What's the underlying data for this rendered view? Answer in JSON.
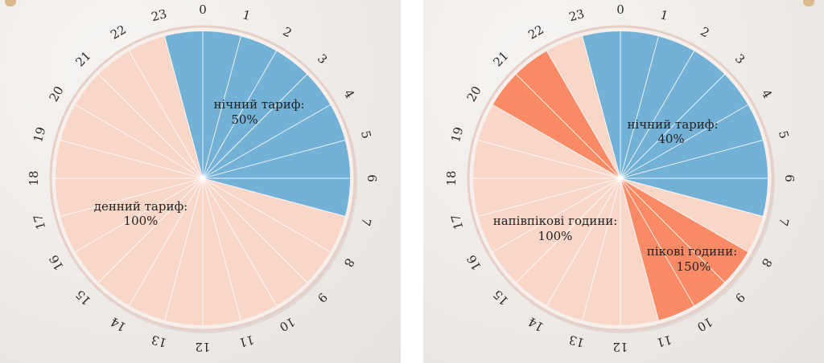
{
  "chart_data": [
    {
      "type": "pie",
      "hour_labels": [
        "0",
        "1",
        "2",
        "3",
        "4",
        "5",
        "6",
        "7",
        "8",
        "9",
        "10",
        "11",
        "12",
        "13",
        "14",
        "15",
        "16",
        "17",
        "18",
        "19",
        "20",
        "21",
        "22",
        "23"
      ],
      "slices": [
        {
          "label": "нічний тариф:",
          "value": "50%",
          "start_hour": 23,
          "end_hour": 7,
          "color": "#73b1d6"
        },
        {
          "label": "денний тариф:",
          "value": "100%",
          "start_hour": 7,
          "end_hour": 23,
          "color": "#f8d6c8"
        }
      ],
      "colors": {
        "night": "#73b1d6",
        "day": "#f8d6c8",
        "rim": "#e6cfc7"
      }
    },
    {
      "type": "pie",
      "hour_labels": [
        "0",
        "1",
        "2",
        "3",
        "4",
        "5",
        "6",
        "7",
        "8",
        "9",
        "10",
        "11",
        "12",
        "13",
        "14",
        "15",
        "16",
        "17",
        "18",
        "19",
        "20",
        "21",
        "22",
        "23"
      ],
      "slices": [
        {
          "label": "нічний тариф:",
          "value": "40%",
          "start_hour": 23,
          "end_hour": 7,
          "color": "#73b1d6"
        },
        {
          "label": "пікові години:",
          "value": "150%",
          "start_hour": 8,
          "end_hour": 11,
          "color": "#f98a66"
        },
        {
          "label": "пікові години:",
          "value": "150%",
          "start_hour": 20,
          "end_hour": 22,
          "color": "#f98a66"
        },
        {
          "label": "напівпікові години:",
          "value": "100%",
          "start_hour": 7,
          "end_hour": 8,
          "color": "#f8d6c8"
        },
        {
          "label": "напівпікові години:",
          "value": "100%",
          "start_hour": 11,
          "end_hour": 20,
          "color": "#f8d6c8"
        },
        {
          "label": "напівпікові години:",
          "value": "100%",
          "start_hour": 22,
          "end_hour": 23,
          "color": "#f8d6c8"
        }
      ],
      "colors": {
        "night": "#73b1d6",
        "peak": "#f98a66",
        "half_peak": "#f8d6c8",
        "rim": "#e6cfc7"
      }
    }
  ]
}
